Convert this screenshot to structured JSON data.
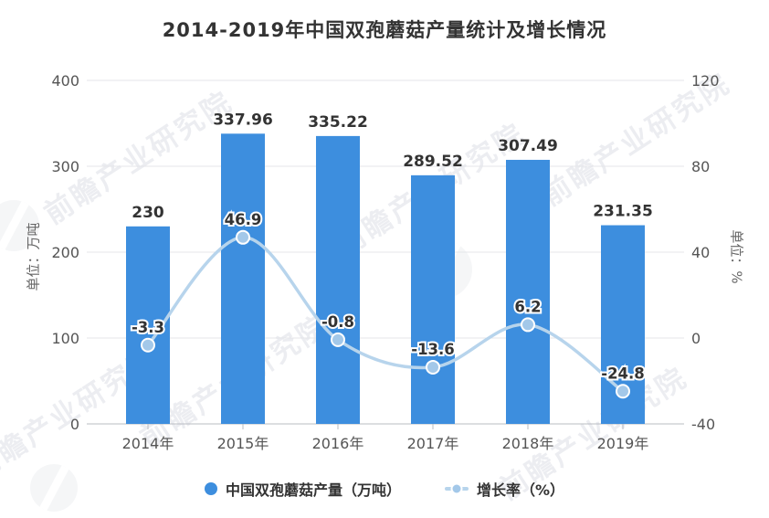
{
  "title": "2014-2019年中国双孢蘑菇产量统计及增长情况",
  "watermark": {
    "brand": "前瞻产业研究院"
  },
  "chart_data": {
    "type": "bar",
    "subtype": "bar-line-combo",
    "title": "2014-2019年中国双孢蘑菇产量统计及增长情况",
    "categories": [
      "2014年",
      "2015年",
      "2016年",
      "2017年",
      "2018年",
      "2019年"
    ],
    "series": [
      {
        "name": "中国双孢蘑菇产量（万吨）",
        "type": "bar",
        "y_axis": "left",
        "values": [
          230,
          337.96,
          335.22,
          289.52,
          307.49,
          231.35
        ],
        "labels": [
          "230",
          "337.96",
          "335.22",
          "289.52",
          "307.49",
          "231.35"
        ],
        "color": "#3d8ede"
      },
      {
        "name": "增长率（%）",
        "type": "line",
        "smooth": true,
        "y_axis": "right",
        "values": [
          -3.3,
          46.9,
          -0.8,
          -13.6,
          6.2,
          -24.8
        ],
        "labels": [
          "-3.3",
          "46.9",
          "-0.8",
          "-13.6",
          "6.2",
          "-24.8"
        ],
        "color": "#b7d4ec",
        "marker_color": "#a3c8e9"
      }
    ],
    "left_axis": {
      "title": "单位：万吨",
      "min": 0,
      "max": 400,
      "ticks": [
        400,
        300,
        200,
        100,
        0
      ]
    },
    "right_axis": {
      "title": "单位：%",
      "min": -40,
      "max": 120,
      "ticks": [
        120,
        80,
        40,
        0,
        -40
      ]
    },
    "grid": true,
    "legend_position": "bottom",
    "colors": {
      "bar_label": "#333333",
      "point_label": "#333333",
      "axis_text": "#555555",
      "gridline": "#e4e5e9",
      "axis_line": "#b9bcc2"
    }
  }
}
